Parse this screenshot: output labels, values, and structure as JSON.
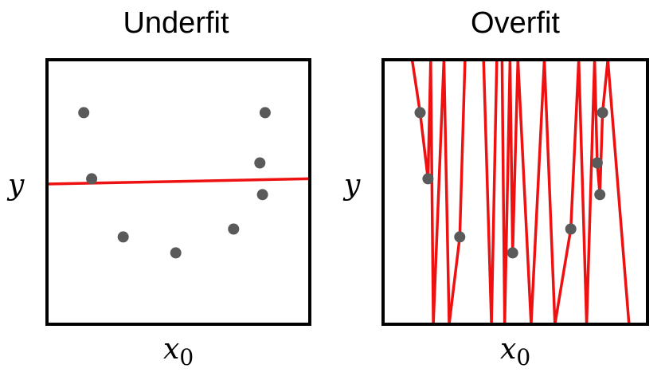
{
  "chart_data": [
    {
      "type": "scatter",
      "title": "Underfit",
      "xlabel": "x",
      "xlabel_sub": "0",
      "ylabel": "y",
      "xlim": [
        0,
        1
      ],
      "ylim": [
        0,
        1
      ],
      "grid": false,
      "points": {
        "color": "#5a5a5a",
        "x": [
          0.14,
          0.17,
          0.29,
          0.49,
          0.71,
          0.81,
          0.82,
          0.83
        ],
        "y": [
          0.8,
          0.55,
          0.33,
          0.27,
          0.36,
          0.61,
          0.49,
          0.8
        ]
      },
      "fit_line": {
        "color": "#ee1111",
        "x": [
          0.0,
          1.0
        ],
        "y": [
          0.53,
          0.55
        ]
      }
    },
    {
      "type": "scatter",
      "title": "Overfit",
      "xlabel": "x",
      "xlabel_sub": "0",
      "ylabel": "y",
      "xlim": [
        0,
        1
      ],
      "ylim": [
        0,
        1
      ],
      "grid": false,
      "points": {
        "color": "#5a5a5a",
        "x": [
          0.14,
          0.17,
          0.29,
          0.49,
          0.71,
          0.81,
          0.82,
          0.83
        ],
        "y": [
          0.8,
          0.55,
          0.33,
          0.27,
          0.36,
          0.61,
          0.49,
          0.8
        ]
      },
      "fit_line": {
        "color": "#ee1111",
        "x": [
          0.11,
          0.14,
          0.17,
          0.18,
          0.19,
          0.23,
          0.25,
          0.29,
          0.31,
          0.38,
          0.41,
          0.43,
          0.45,
          0.46,
          0.48,
          0.49,
          0.51,
          0.56,
          0.61,
          0.65,
          0.71,
          0.74,
          0.77,
          0.8,
          0.81,
          0.82,
          0.83,
          0.85,
          0.93
        ],
        "y": [
          1.0,
          0.8,
          0.55,
          1.0,
          0.0,
          1.0,
          0.0,
          0.33,
          1.0,
          1.0,
          0.0,
          1.0,
          1.0,
          0.0,
          1.0,
          0.27,
          1.0,
          0.0,
          1.0,
          0.0,
          0.36,
          1.0,
          0.0,
          1.0,
          0.61,
          0.49,
          0.8,
          1.0,
          0.0
        ]
      }
    }
  ]
}
